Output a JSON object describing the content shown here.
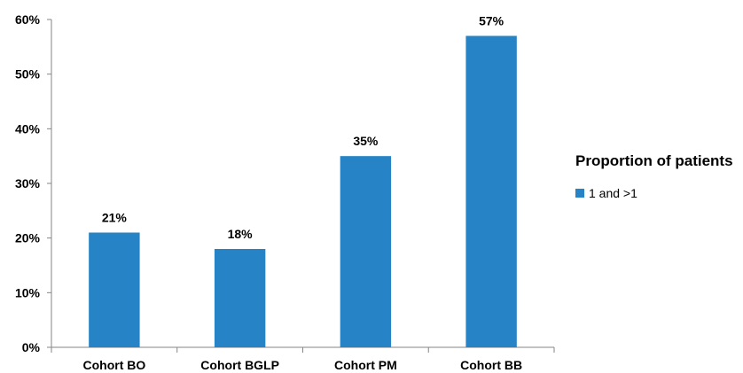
{
  "chart_data": {
    "type": "bar",
    "categories": [
      "Cohort BO",
      "Cohort BGLP",
      "Cohort PM",
      "Cohort BB"
    ],
    "series": [
      {
        "name": "1 and >1",
        "values": [
          21,
          18,
          35,
          57
        ],
        "color": "#2683C6"
      }
    ],
    "data_labels": [
      "21%",
      "18%",
      "35%",
      "57%"
    ],
    "yticks": [
      0,
      10,
      20,
      30,
      40,
      50,
      60
    ],
    "ytick_labels": [
      "0%",
      "10%",
      "20%",
      "30%",
      "40%",
      "50%",
      "60%"
    ],
    "ylim": [
      0,
      60
    ],
    "grid": false,
    "legend": {
      "title": "Proportion of patients",
      "placement": "right"
    }
  }
}
